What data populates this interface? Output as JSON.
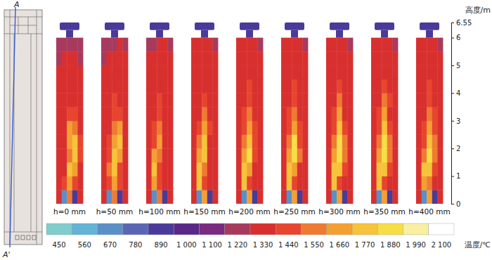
{
  "chart_data": {
    "type": "heatmap",
    "y_label": "高度/m",
    "ylim": [
      0,
      6.55
    ],
    "yticks": [
      0,
      1,
      2,
      3,
      4,
      5,
      6,
      6.55
    ],
    "schematic": {
      "labels": [
        "A",
        "A'"
      ]
    },
    "y_edges": [
      0,
      0.5,
      1,
      1.5,
      2,
      2.5,
      3,
      3.5,
      4,
      4.5,
      5,
      5.5,
      6
    ],
    "outlet_range": [
      6,
      6.55
    ],
    "colorbar": {
      "label": "温度/℃",
      "ticks": [
        450,
        560,
        670,
        780,
        890,
        {
          "value": 1000,
          "label": "1 000"
        },
        {
          "value": 1100,
          "label": "1 100"
        },
        {
          "value": 1220,
          "label": "1 220"
        },
        {
          "value": 1330,
          "label": "1 330"
        },
        {
          "value": 1440,
          "label": "1 440"
        },
        {
          "value": 1550,
          "label": "1 550"
        },
        {
          "value": 1660,
          "label": "1 660"
        },
        {
          "value": 1770,
          "label": "1 770"
        },
        {
          "value": 1880,
          "label": "1 880"
        },
        {
          "value": 1990,
          "label": "1 990"
        },
        {
          "value": 2100,
          "label": "2 100"
        }
      ],
      "colors": [
        "#7fcdcc",
        "#63b3d6",
        "#5b8fc9",
        "#5a66b5",
        "#4a3a9a",
        "#5a2888",
        "#7a2a80",
        "#a83a5e",
        "#d8302f",
        "#e8452e",
        "#ef7a32",
        "#f3a033",
        "#f6c33a",
        "#f7de45",
        "#f8f0a0",
        "#ffffff"
      ]
    },
    "panels": [
      {
        "label": "h=0 mm",
        "outlet": 960,
        "cells": [
          [
            1380,
            700,
            1600,
            950,
            1380
          ],
          [
            1380,
            1500,
            1720,
            1500,
            1380
          ],
          [
            1380,
            1380,
            1820,
            1720,
            1380
          ],
          [
            1380,
            1380,
            1600,
            1820,
            1500
          ],
          [
            1380,
            1380,
            1720,
            1820,
            1500
          ],
          [
            1380,
            1380,
            1720,
            1600,
            1380
          ],
          [
            1380,
            1380,
            1500,
            1500,
            1380
          ],
          [
            1380,
            1380,
            1380,
            1380,
            1380
          ],
          [
            1380,
            1380,
            1380,
            1380,
            1380
          ],
          [
            1380,
            1380,
            1380,
            1380,
            1380
          ],
          [
            1280,
            1380,
            1380,
            1380,
            1280
          ],
          [
            1280,
            1280,
            1280,
            1280,
            1280
          ]
        ]
      },
      {
        "label": "h=50 mm",
        "outlet": 960,
        "cells": [
          [
            1380,
            700,
            1600,
            950,
            1380
          ],
          [
            1380,
            1500,
            1720,
            1500,
            1380
          ],
          [
            1380,
            1600,
            1820,
            1500,
            1380
          ],
          [
            1380,
            1500,
            1820,
            1720,
            1380
          ],
          [
            1380,
            1500,
            1720,
            1820,
            1380
          ],
          [
            1380,
            1380,
            1600,
            1720,
            1380
          ],
          [
            1380,
            1380,
            1500,
            1500,
            1380
          ],
          [
            1380,
            1380,
            1500,
            1380,
            1380
          ],
          [
            1380,
            1380,
            1380,
            1380,
            1380
          ],
          [
            1380,
            1380,
            1380,
            1380,
            1380
          ],
          [
            1280,
            1380,
            1380,
            1380,
            1380
          ],
          [
            1280,
            1280,
            1280,
            1380,
            1280
          ]
        ]
      },
      {
        "label": "h=100 mm",
        "outlet": 960,
        "cells": [
          [
            1380,
            700,
            1600,
            950,
            1380
          ],
          [
            1380,
            1720,
            1500,
            1380,
            1380
          ],
          [
            1380,
            1820,
            1500,
            1380,
            1380
          ],
          [
            1380,
            1720,
            1600,
            1380,
            1380
          ],
          [
            1380,
            1500,
            1720,
            1380,
            1380
          ],
          [
            1380,
            1500,
            1600,
            1380,
            1380
          ],
          [
            1380,
            1380,
            1500,
            1380,
            1380
          ],
          [
            1380,
            1380,
            1500,
            1380,
            1380
          ],
          [
            1380,
            1380,
            1380,
            1380,
            1380
          ],
          [
            1380,
            1380,
            1380,
            1380,
            1380
          ],
          [
            1380,
            1380,
            1380,
            1380,
            1380
          ],
          [
            1280,
            1280,
            1380,
            1380,
            1280
          ]
        ]
      },
      {
        "label": "h=150 mm",
        "outlet": 960,
        "cells": [
          [
            1380,
            700,
            1720,
            950,
            1380
          ],
          [
            1380,
            1820,
            1500,
            1380,
            1380
          ],
          [
            1380,
            1820,
            1600,
            1380,
            1380
          ],
          [
            1380,
            1720,
            1820,
            1380,
            1380
          ],
          [
            1380,
            1600,
            1820,
            1380,
            1380
          ],
          [
            1380,
            1500,
            1720,
            1500,
            1380
          ],
          [
            1380,
            1380,
            1600,
            1380,
            1380
          ],
          [
            1380,
            1380,
            1500,
            1380,
            1380
          ],
          [
            1380,
            1380,
            1380,
            1380,
            1380
          ],
          [
            1380,
            1380,
            1380,
            1380,
            1380
          ],
          [
            1380,
            1380,
            1380,
            1380,
            1380
          ],
          [
            1380,
            1380,
            1380,
            1380,
            1280
          ]
        ]
      },
      {
        "label": "h=200 mm",
        "outlet": 960,
        "cells": [
          [
            1380,
            700,
            1720,
            950,
            1380
          ],
          [
            1380,
            1820,
            1500,
            1380,
            1380
          ],
          [
            1380,
            1820,
            1720,
            1380,
            1380
          ],
          [
            1380,
            1720,
            1930,
            1500,
            1380
          ],
          [
            1380,
            1600,
            1820,
            1500,
            1380
          ],
          [
            1380,
            1500,
            1720,
            1500,
            1380
          ],
          [
            1380,
            1500,
            1600,
            1380,
            1380
          ],
          [
            1380,
            1380,
            1500,
            1380,
            1380
          ],
          [
            1380,
            1380,
            1500,
            1380,
            1380
          ],
          [
            1380,
            1380,
            1380,
            1380,
            1380
          ],
          [
            1380,
            1380,
            1380,
            1380,
            1380
          ],
          [
            1380,
            1380,
            1380,
            1380,
            1280
          ]
        ]
      },
      {
        "label": "h=250 mm",
        "outlet": 960,
        "cells": [
          [
            1380,
            700,
            1720,
            950,
            1380
          ],
          [
            1380,
            1820,
            1500,
            1380,
            1380
          ],
          [
            1380,
            1820,
            1720,
            1380,
            1380
          ],
          [
            1380,
            1720,
            1930,
            1600,
            1380
          ],
          [
            1380,
            1600,
            1930,
            1500,
            1380
          ],
          [
            1380,
            1500,
            1720,
            1500,
            1380
          ],
          [
            1380,
            1500,
            1600,
            1380,
            1380
          ],
          [
            1380,
            1380,
            1500,
            1380,
            1380
          ],
          [
            1380,
            1380,
            1500,
            1380,
            1380
          ],
          [
            1380,
            1380,
            1380,
            1380,
            1380
          ],
          [
            1380,
            1380,
            1380,
            1380,
            1380
          ],
          [
            1380,
            1380,
            1380,
            1380,
            1280
          ]
        ]
      },
      {
        "label": "h=300 mm",
        "outlet": 960,
        "cells": [
          [
            1380,
            700,
            1720,
            950,
            1380
          ],
          [
            1380,
            1820,
            1500,
            1380,
            1380
          ],
          [
            1380,
            1820,
            1820,
            1500,
            1380
          ],
          [
            1380,
            1720,
            1930,
            1600,
            1380
          ],
          [
            1380,
            1600,
            1930,
            1600,
            1380
          ],
          [
            1380,
            1500,
            1820,
            1500,
            1380
          ],
          [
            1380,
            1500,
            1720,
            1380,
            1380
          ],
          [
            1380,
            1380,
            1600,
            1380,
            1380
          ],
          [
            1380,
            1380,
            1500,
            1380,
            1380
          ],
          [
            1380,
            1380,
            1380,
            1380,
            1380
          ],
          [
            1380,
            1380,
            1380,
            1380,
            1380
          ],
          [
            1380,
            1380,
            1380,
            1380,
            1280
          ]
        ]
      },
      {
        "label": "h=350 mm",
        "outlet": 960,
        "cells": [
          [
            1380,
            700,
            1720,
            950,
            1380
          ],
          [
            1380,
            1820,
            1500,
            1380,
            1380
          ],
          [
            1380,
            1820,
            1820,
            1500,
            1380
          ],
          [
            1380,
            1720,
            1930,
            1600,
            1380
          ],
          [
            1380,
            1600,
            1930,
            1600,
            1380
          ],
          [
            1380,
            1500,
            1820,
            1500,
            1380
          ],
          [
            1380,
            1500,
            1720,
            1380,
            1380
          ],
          [
            1380,
            1380,
            1600,
            1500,
            1380
          ],
          [
            1380,
            1380,
            1500,
            1380,
            1380
          ],
          [
            1380,
            1380,
            1380,
            1380,
            1380
          ],
          [
            1380,
            1380,
            1380,
            1380,
            1380
          ],
          [
            1380,
            1380,
            1380,
            1380,
            1280
          ]
        ]
      },
      {
        "label": "h=400 mm",
        "outlet": 960,
        "cells": [
          [
            1380,
            700,
            1720,
            950,
            1380
          ],
          [
            1380,
            1720,
            1600,
            1380,
            1380
          ],
          [
            1380,
            1820,
            1820,
            1500,
            1380
          ],
          [
            1380,
            1600,
            1930,
            1600,
            1380
          ],
          [
            1380,
            1500,
            1820,
            1600,
            1380
          ],
          [
            1380,
            1500,
            1720,
            1500,
            1380
          ],
          [
            1380,
            1380,
            1600,
            1500,
            1380
          ],
          [
            1380,
            1380,
            1500,
            1380,
            1380
          ],
          [
            1380,
            1380,
            1500,
            1380,
            1380
          ],
          [
            1380,
            1380,
            1380,
            1380,
            1380
          ],
          [
            1380,
            1380,
            1380,
            1380,
            1380
          ],
          [
            1380,
            1380,
            1380,
            1380,
            1280
          ]
        ]
      }
    ]
  }
}
